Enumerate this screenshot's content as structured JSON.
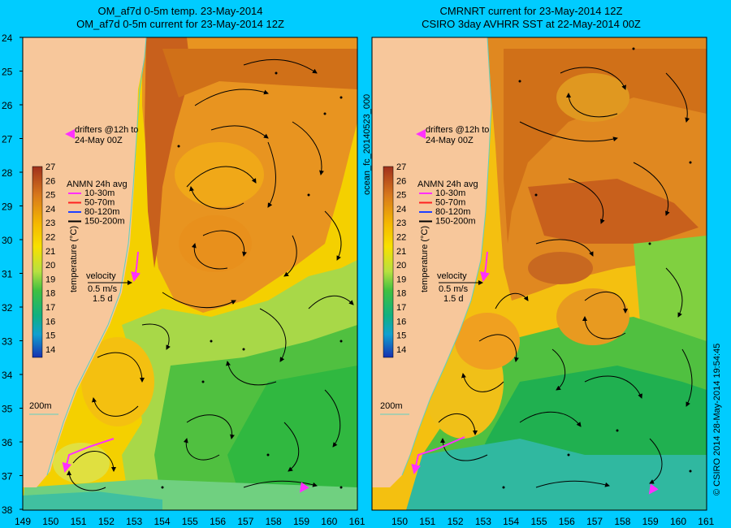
{
  "left_panel": {
    "title_line1": "OM_af7d 0-5m temp. 23-May-2014",
    "title_line2": "OM_af7d 0-5m current for 23-May-2014 12Z"
  },
  "right_panel": {
    "title_line1": "CMRNRT current for 23-May-2014 12Z",
    "title_line2": "CSIRO 3day AVHRR SST at 22-May-2014 00Z"
  },
  "y_axis_labels": [
    "24",
    "25",
    "26",
    "27",
    "28",
    "29",
    "30",
    "31",
    "32",
    "33",
    "34",
    "35",
    "36",
    "37",
    "38"
  ],
  "x_axis_labels_left": [
    "149",
    "150",
    "151",
    "152",
    "153",
    "154",
    "155",
    "156",
    "157",
    "158",
    "159",
    "160",
    "161"
  ],
  "x_axis_labels_right": [
    "150",
    "151",
    "152",
    "153",
    "154",
    "155",
    "156",
    "157",
    "158",
    "159",
    "160",
    "161"
  ],
  "colorbar": {
    "labels": [
      "27",
      "26",
      "25",
      "24",
      "23",
      "22",
      "21",
      "20",
      "19",
      "18",
      "17",
      "16",
      "15",
      "14"
    ],
    "title": "temperature (°C)",
    "colors": [
      "#a0301c",
      "#c05a20",
      "#d8781c",
      "#ee9a10",
      "#f5b800",
      "#f8d800",
      "#e8e830",
      "#b8e040",
      "#70d040",
      "#30c040",
      "#10b070",
      "#10a0c0",
      "#1060d0",
      "#1830b0"
    ]
  },
  "legend": {
    "title": "ANMN 24h avg",
    "items": [
      {
        "label": "10-30m",
        "color": "#ff30ff"
      },
      {
        "label": "50-70m",
        "color": "#ff2020"
      },
      {
        "label": "80-120m",
        "color": "#2040ff"
      },
      {
        "label": "150-200m",
        "color": "#000000"
      }
    ]
  },
  "drifters_label_line1": "drifters @12h to",
  "drifters_label_line2": "24-May 00Z",
  "velocity": {
    "label": "velocity",
    "speed": "0.5 m/s",
    "duration": "1.5 d"
  },
  "isobath_label": "200m",
  "side_label": "ocean_fc_20140523_000",
  "credit": "© CSIRO 2014   28-May-2014 19:54:45",
  "colors": {
    "background": "#00ccff",
    "land": "#f7c79b",
    "coast_line": "#5fd0c0"
  }
}
